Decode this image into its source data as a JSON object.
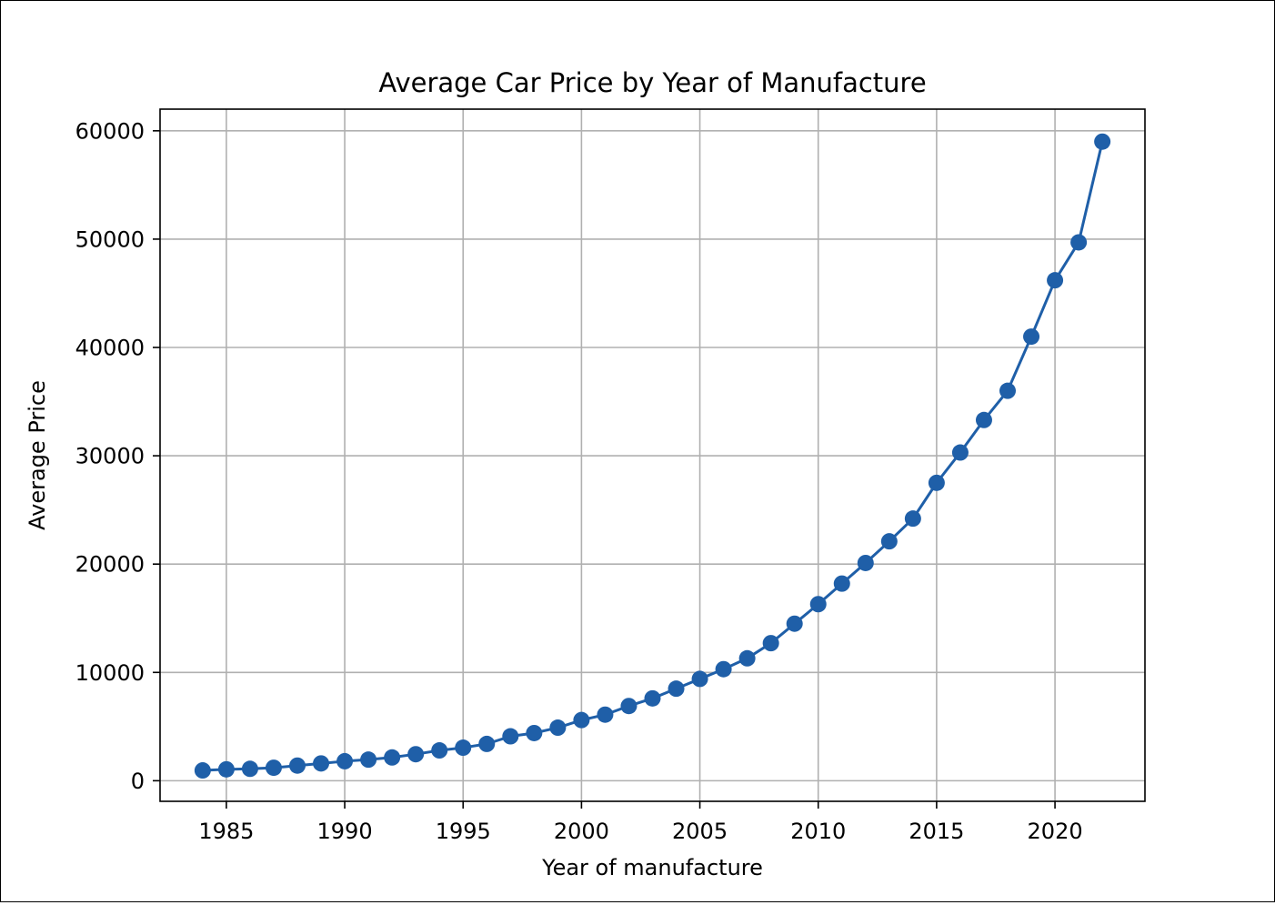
{
  "chart_data": {
    "type": "line",
    "title": "Average Car Price by Year of Manufacture",
    "xlabel": "Year of manufacture",
    "ylabel": "Average Price",
    "xlim": [
      1982.2,
      2023.8
    ],
    "ylim": [
      -1900,
      62000
    ],
    "grid": true,
    "legend": "none",
    "x_ticks": [
      1985,
      1990,
      1995,
      2000,
      2005,
      2010,
      2015,
      2020
    ],
    "y_ticks": [
      0,
      10000,
      20000,
      30000,
      40000,
      50000,
      60000
    ],
    "colors": {
      "line": "#1f5fa8",
      "grid": "#b0b0b0",
      "axes": "#000000"
    },
    "series": [
      {
        "marker": "circle",
        "x": [
          1984,
          1985,
          1986,
          1987,
          1988,
          1989,
          1990,
          1991,
          1992,
          1993,
          1994,
          1995,
          1996,
          1997,
          1998,
          1999,
          2000,
          2001,
          2002,
          2003,
          2004,
          2005,
          2006,
          2007,
          2008,
          2009,
          2010,
          2011,
          2012,
          2013,
          2014,
          2015,
          2016,
          2017,
          2018,
          2019,
          2020,
          2021,
          2022
        ],
        "y": [
          950,
          1050,
          1100,
          1200,
          1400,
          1600,
          1800,
          1950,
          2150,
          2450,
          2800,
          3050,
          3400,
          4100,
          4400,
          4900,
          5600,
          6100,
          6900,
          7600,
          8500,
          9400,
          10300,
          11300,
          12700,
          14500,
          16300,
          18200,
          20100,
          22100,
          24200,
          27500,
          30300,
          33300,
          36000,
          41000,
          46200,
          49700,
          59000
        ]
      }
    ]
  }
}
